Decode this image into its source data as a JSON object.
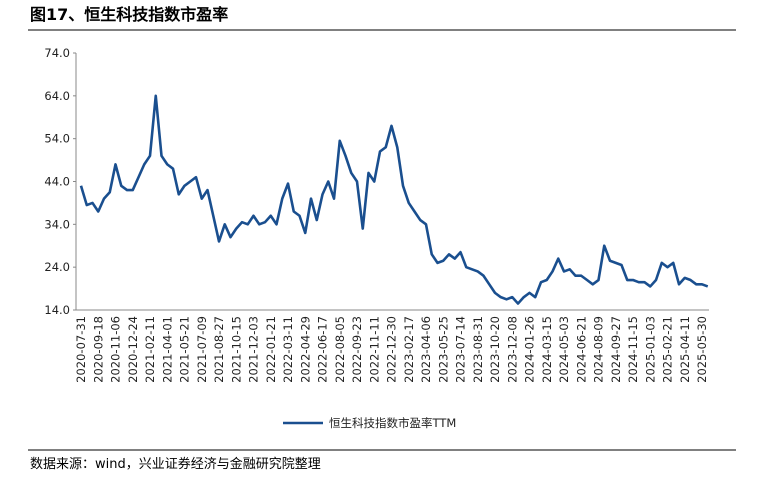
{
  "chart_data": {
    "type": "line",
    "title": "图17、恒生科技指数市盈率",
    "source": "数据来源：wind，兴业证券经济与金融研究院整理",
    "categories": [
      "2020-07-31",
      null,
      null,
      "2020-09-18",
      null,
      null,
      "2020-11-06",
      null,
      null,
      "2020-12-24",
      null,
      null,
      "2021-02-11",
      null,
      null,
      "2021-04-01",
      null,
      null,
      "2021-05-21",
      null,
      null,
      "2021-07-09",
      null,
      null,
      "2021-08-27",
      null,
      null,
      "2021-10-15",
      null,
      null,
      "2021-12-03",
      null,
      null,
      "2022-01-21",
      null,
      null,
      "2022-03-11",
      null,
      null,
      "2022-04-29",
      null,
      null,
      "2022-06-17",
      null,
      null,
      "2022-08-05",
      null,
      null,
      "2022-09-23",
      null,
      null,
      "2022-11-11",
      null,
      null,
      "2022-12-30",
      null,
      null,
      "2023-02-17",
      null,
      null,
      "2023-04-06",
      null,
      null,
      "2023-05-25",
      null,
      null,
      "2023-07-14",
      null,
      null,
      "2023-08-31",
      null,
      null,
      "2023-10-20",
      null,
      null,
      "2023-12-08",
      null,
      null,
      "2024-01-26",
      null,
      null,
      "2024-03-15",
      null,
      null,
      "2024-05-03",
      null,
      null,
      "2024-06-21",
      null,
      null,
      "2024-08-09",
      null,
      null,
      "2024-09-27",
      null,
      null,
      "2024-11-15",
      null,
      null,
      "2025-01-03",
      null,
      null,
      "2025-02-21",
      null,
      null,
      "2025-04-11",
      null,
      null,
      "2025-05-30",
      null
    ],
    "series": [
      {
        "name": "恒生科技指数市盈率TTM",
        "color": "#1a4f8f",
        "values": [
          43,
          38.5,
          39,
          37,
          40,
          41.5,
          48,
          43,
          42,
          42,
          45,
          48,
          50,
          64,
          50,
          48,
          47,
          41,
          43,
          44,
          45,
          40,
          42,
          36,
          30,
          34,
          31,
          33,
          34.5,
          34,
          36,
          34,
          34.5,
          36,
          34,
          40,
          43.5,
          37,
          36,
          32,
          40,
          35,
          41,
          44,
          40,
          53.5,
          50,
          46,
          44,
          33,
          46,
          44,
          51,
          52,
          57,
          52,
          43,
          39,
          37,
          35,
          34,
          27,
          25,
          25.5,
          27,
          26,
          27.5,
          24,
          23.5,
          23,
          22,
          20,
          18,
          17,
          16.5,
          17,
          15.5,
          17,
          18,
          17,
          20.5,
          21,
          23,
          26,
          23,
          23.5,
          22,
          22,
          21,
          20,
          21,
          29,
          25.5,
          25,
          24.5,
          21,
          21,
          20.5,
          20.5,
          19.5,
          21,
          25,
          24,
          25,
          20,
          21.5,
          21,
          20,
          20,
          19.5
        ]
      }
    ],
    "ylim": [
      14,
      74
    ],
    "yticks": [
      {
        "value": 14,
        "label": "14.0"
      },
      {
        "value": 24,
        "label": "24.0"
      },
      {
        "value": 34,
        "label": "34.0"
      },
      {
        "value": 44,
        "label": "44.0"
      },
      {
        "value": 54,
        "label": "54.0"
      },
      {
        "value": 64,
        "label": "64.0"
      },
      {
        "value": 74,
        "label": "74.0"
      }
    ],
    "legend": "bottom"
  }
}
